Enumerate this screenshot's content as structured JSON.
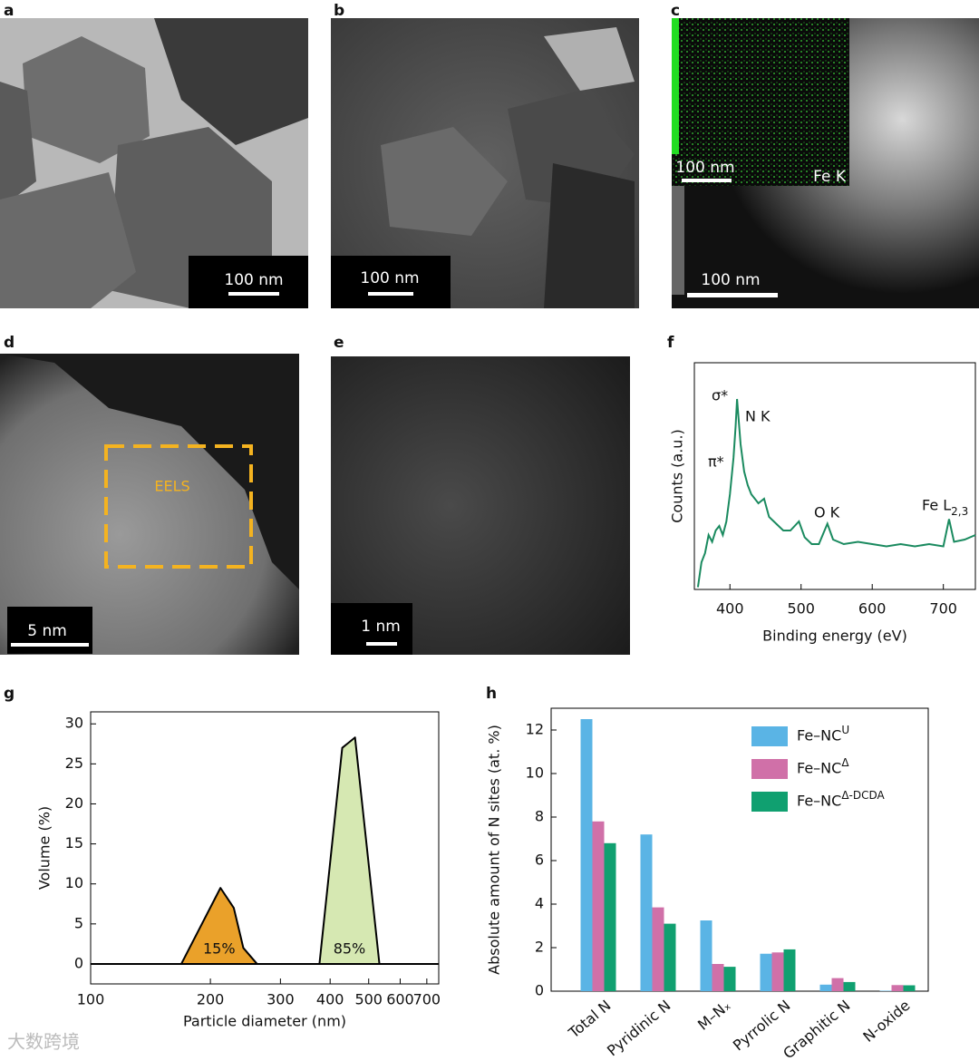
{
  "panels": {
    "labels": [
      "a",
      "b",
      "c",
      "d",
      "e",
      "f",
      "g",
      "h"
    ],
    "a": {
      "scale_bar": "100 nm"
    },
    "b": {
      "scale_bar": "100 nm"
    },
    "c": {
      "scale_bar": "100 nm",
      "inset_scale_bar": "100 nm",
      "inset_label": "Fe K"
    },
    "d": {
      "scale_bar": "5 nm",
      "box_label": "EELS"
    },
    "e": {
      "scale_bar": "1 nm"
    }
  },
  "watermark": "大数跨境",
  "chart_data": [
    {
      "type": "line",
      "xlabel": "Binding energy (eV)",
      "ylabel": "Counts (a.u.)",
      "color": "#1a8a5f",
      "xlim": [
        350,
        745
      ],
      "xticks": [
        400,
        500,
        600,
        700
      ],
      "ylim": [
        0,
        100
      ],
      "x": [
        355,
        360,
        365,
        370,
        375,
        380,
        385,
        390,
        395,
        400,
        405,
        408,
        410,
        413,
        415,
        420,
        425,
        430,
        440,
        448,
        455,
        465,
        475,
        485,
        497,
        505,
        515,
        525,
        537,
        545,
        560,
        580,
        600,
        620,
        640,
        660,
        680,
        700,
        708,
        715,
        730,
        745
      ],
      "values": [
        1,
        12,
        16,
        24,
        21,
        26,
        28,
        24,
        30,
        42,
        58,
        72,
        84,
        72,
        64,
        52,
        46,
        42,
        38,
        40,
        32,
        29,
        26,
        26,
        30,
        23,
        20,
        20,
        29,
        22,
        20,
        21,
        20,
        19,
        20,
        19,
        20,
        19,
        31,
        21,
        22,
        24
      ],
      "annotations": [
        {
          "text": "σ*"
        },
        {
          "text": "π*"
        },
        {
          "text": "N K"
        },
        {
          "text": "O K"
        },
        {
          "text": "Fe L",
          "subscript": "2,3"
        }
      ]
    },
    {
      "type": "area",
      "xlabel": "Particle diameter (nm)",
      "ylabel": "Volume (%)",
      "xscale": "log",
      "xlim": [
        100,
        750
      ],
      "xticks": [
        100,
        200,
        300,
        400,
        500,
        600,
        700
      ],
      "ylim": [
        -2.5,
        31.5
      ],
      "yticks": [
        0,
        5,
        10,
        15,
        20,
        25,
        30
      ],
      "series": [
        {
          "color": "#eaa12a",
          "x": [
            169,
            212,
            229,
            242,
            262
          ],
          "values": [
            0,
            9.5,
            7,
            2,
            0
          ],
          "value_label": "15%"
        },
        {
          "color": "#d6e8b2",
          "x": [
            376,
            429,
            462,
            532
          ],
          "values": [
            0,
            27,
            28.3,
            0
          ],
          "value_label": "85%"
        }
      ]
    },
    {
      "type": "bar",
      "ylabel": "Absolute amount of N sites (at. %)",
      "categories": [
        "Total N",
        "Pyridinic N",
        "M–Nₓ",
        "Pyrrolic N",
        "Graphitic N",
        "N-oxide"
      ],
      "ylim": [
        0,
        13
      ],
      "yticks": [
        0,
        2,
        4,
        6,
        8,
        10,
        12
      ],
      "legend": "top-right",
      "series": [
        {
          "name": "Fe–NC",
          "name_superscript": "U",
          "color": "#5ab4e5",
          "values": [
            12.5,
            7.2,
            3.25,
            1.72,
            0.3,
            0.02
          ]
        },
        {
          "name": "Fe–NC",
          "name_superscript": "Δ",
          "color": "#d070a8",
          "values": [
            7.8,
            3.85,
            1.25,
            1.78,
            0.6,
            0.28
          ]
        },
        {
          "name": "Fe–NC",
          "name_superscript": "Δ-DCDA",
          "color": "#10a070",
          "values": [
            6.8,
            3.1,
            1.12,
            1.92,
            0.42,
            0.27
          ]
        }
      ]
    }
  ]
}
